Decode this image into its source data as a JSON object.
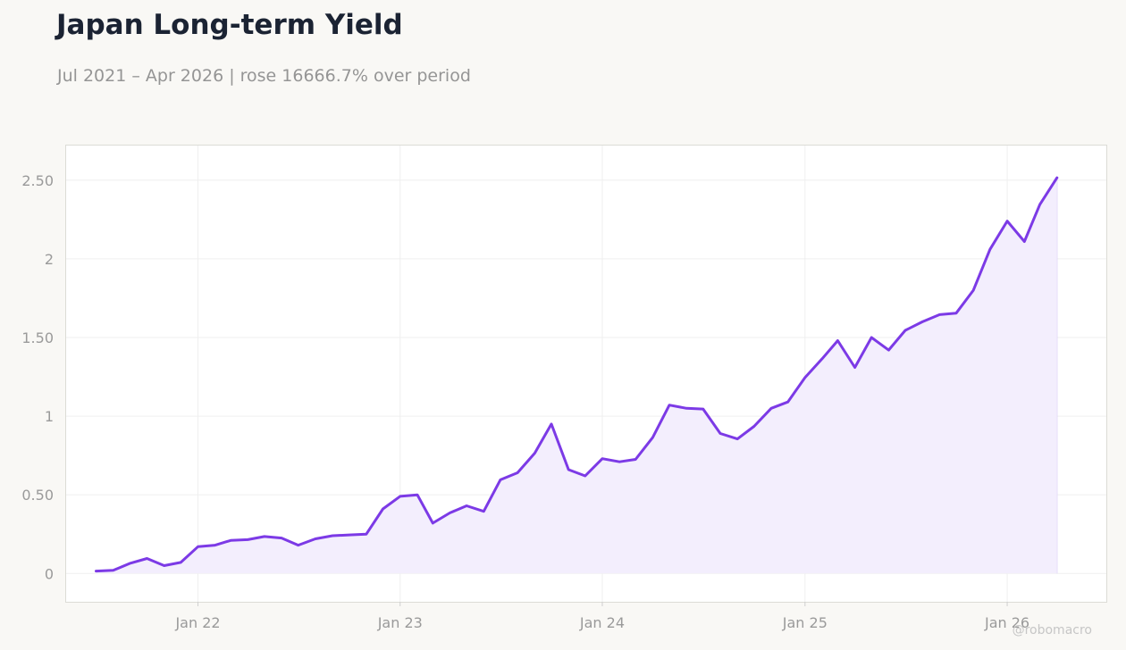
{
  "header": {
    "title": "Japan Long-term Yield",
    "subtitle": "Jul 2021 – Apr 2026 | rose 16666.7% over period"
  },
  "watermark": "@robomacro",
  "colors": {
    "line": "#7c3ae6",
    "fill": "#f2edfd",
    "background": "#f9f8f5",
    "plot_background": "#ffffff",
    "grid": "#efefef",
    "axis_text": "#9a9a9a"
  },
  "chart_data": {
    "type": "area",
    "title": "Japan Long-term Yield",
    "subtitle": "Jul 2021 – Apr 2026 | rose 16666.7% over period",
    "xlabel": "",
    "ylabel": "",
    "ylim": [
      -0.18,
      2.72
    ],
    "xlim": [
      "2021-05-08",
      "2026-06-29"
    ],
    "grid": true,
    "legend": "none",
    "x_ticks": [
      {
        "date": "2022-01-01",
        "label": "Jan 22"
      },
      {
        "date": "2023-01-01",
        "label": "Jan 23"
      },
      {
        "date": "2024-01-01",
        "label": "Jan 24"
      },
      {
        "date": "2025-01-01",
        "label": "Jan 25"
      },
      {
        "date": "2026-01-01",
        "label": "Jan 26"
      }
    ],
    "y_ticks": [
      {
        "value": 0,
        "label": "0"
      },
      {
        "value": 0.5,
        "label": "0.50"
      },
      {
        "value": 1,
        "label": "1"
      },
      {
        "value": 1.5,
        "label": "1.50"
      },
      {
        "value": 2,
        "label": "2"
      },
      {
        "value": 2.5,
        "label": "2.50"
      }
    ],
    "series": [
      {
        "x": [
          "2021-07-01",
          "2021-08-01",
          "2021-09-01",
          "2021-10-01",
          "2021-11-01",
          "2021-12-01",
          "2022-01-01",
          "2022-02-01",
          "2022-03-01",
          "2022-04-01",
          "2022-05-01",
          "2022-06-01",
          "2022-07-01",
          "2022-08-01",
          "2022-09-01",
          "2022-10-01",
          "2022-11-01",
          "2022-12-01",
          "2023-01-01",
          "2023-02-01",
          "2023-03-01",
          "2023-04-01",
          "2023-05-01",
          "2023-06-01",
          "2023-07-01",
          "2023-08-01",
          "2023-09-01",
          "2023-10-01",
          "2023-11-01",
          "2023-12-01",
          "2024-01-01",
          "2024-02-01",
          "2024-03-01",
          "2024-04-01",
          "2024-05-01",
          "2024-06-01",
          "2024-07-01",
          "2024-08-01",
          "2024-09-01",
          "2024-10-01",
          "2024-11-01",
          "2024-12-01",
          "2025-01-01",
          "2025-02-01",
          "2025-03-01",
          "2025-04-01",
          "2025-05-01",
          "2025-06-01",
          "2025-07-01",
          "2025-08-01",
          "2025-09-01",
          "2025-10-01",
          "2025-11-01",
          "2025-12-01",
          "2026-01-01",
          "2026-02-01",
          "2026-03-01",
          "2026-04-01"
        ],
        "values": [
          0.015,
          0.02,
          0.065,
          0.095,
          0.05,
          0.07,
          0.17,
          0.18,
          0.21,
          0.215,
          0.235,
          0.225,
          0.18,
          0.22,
          0.24,
          0.245,
          0.25,
          0.41,
          0.49,
          0.5,
          0.32,
          0.385,
          0.43,
          0.395,
          0.595,
          0.64,
          0.765,
          0.95,
          0.66,
          0.62,
          0.73,
          0.71,
          0.725,
          0.865,
          1.07,
          1.05,
          1.045,
          0.89,
          0.855,
          0.935,
          1.05,
          1.09,
          1.245,
          1.365,
          1.48,
          1.31,
          1.5,
          1.42,
          1.545,
          1.6,
          1.645,
          1.655,
          1.8,
          2.06,
          2.24,
          2.11,
          2.345,
          2.515
        ]
      }
    ]
  }
}
